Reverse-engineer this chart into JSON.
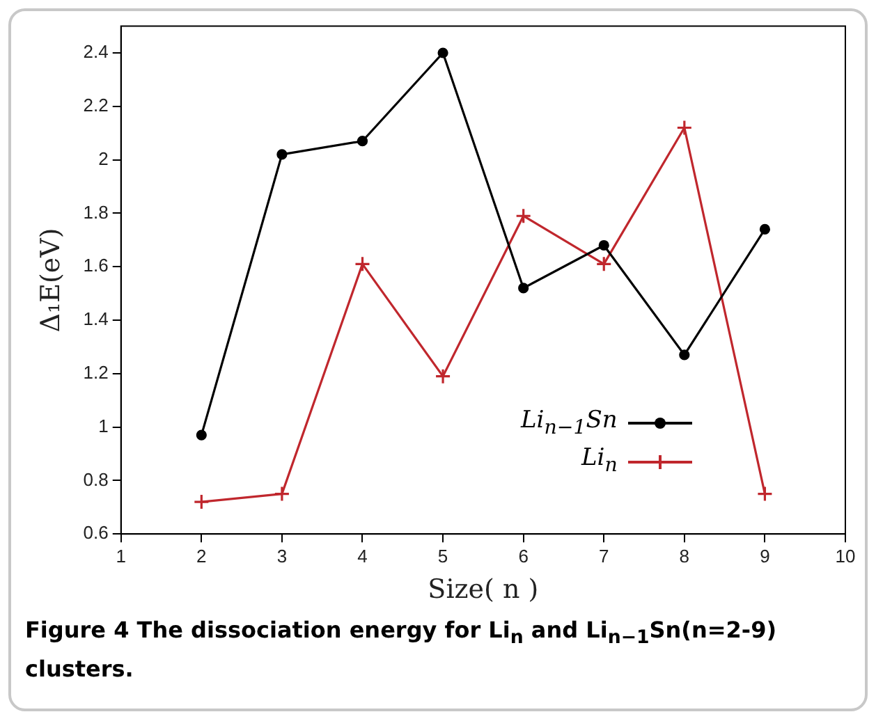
{
  "chart_data": {
    "type": "line",
    "xlabel": "Size( n )",
    "ylabel": "Δ₁E(eV)",
    "x": [
      2,
      3,
      4,
      5,
      6,
      7,
      8,
      9
    ],
    "series": [
      {
        "name": "Li$_{n−1}$Sn",
        "color": "#000000",
        "marker": "circle",
        "values": [
          0.97,
          2.02,
          2.07,
          2.4,
          1.52,
          1.68,
          1.27,
          1.74
        ]
      },
      {
        "name": "Li$_{n}$",
        "color": "#c0272d",
        "marker": "cross",
        "values": [
          0.72,
          0.75,
          1.61,
          1.19,
          1.79,
          1.61,
          2.12,
          0.75
        ]
      }
    ],
    "xlim": [
      1,
      10
    ],
    "xticks": [
      1,
      2,
      3,
      4,
      5,
      6,
      7,
      8,
      9,
      10
    ],
    "ylim": [
      0.6,
      2.5
    ],
    "yticks": [
      0.6,
      0.8,
      1,
      1.2,
      1.4,
      1.6,
      1.8,
      2,
      2.2,
      2.4
    ],
    "grid": false,
    "legend": "bottom right",
    "line_style": "solid",
    "annotations": [
      "Figure 4 The dissociation energy for Li$_{n}$ and Li$_{n−1}$Sn(n=2-9) clusters."
    ]
  }
}
